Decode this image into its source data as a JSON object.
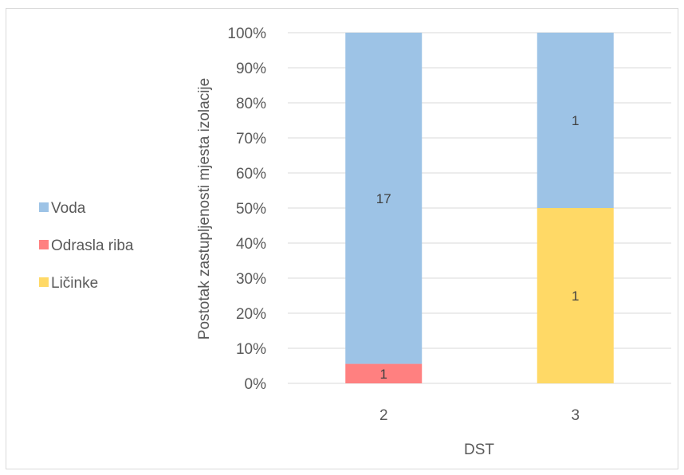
{
  "chart_data": {
    "type": "bar",
    "stacked": true,
    "percent_stacked": true,
    "categories": [
      "2",
      "3"
    ],
    "series": [
      {
        "name": "Voda",
        "values": [
          17,
          1
        ],
        "color": "#9dc3e6"
      },
      {
        "name": "Odrasla riba",
        "values": [
          1,
          0
        ],
        "color": "#ff8080"
      },
      {
        "name": "Ličinke",
        "values": [
          0,
          1
        ],
        "color": "#ffd966"
      }
    ],
    "stack_order_bottom_to_top": [
      "Odrasla riba",
      "Ličinke",
      "Voda"
    ],
    "xlabel": "DST",
    "ylabel": "Postotak zastupljenosti mjesta izolacije",
    "ylim": [
      0,
      100
    ],
    "yticks": [
      "0%",
      "10%",
      "20%",
      "30%",
      "40%",
      "50%",
      "60%",
      "70%",
      "80%",
      "90%",
      "100%"
    ],
    "grid": true,
    "legend_position": "left",
    "legend_order": [
      "Voda",
      "Odrasla riba",
      "Ličinke"
    ]
  }
}
